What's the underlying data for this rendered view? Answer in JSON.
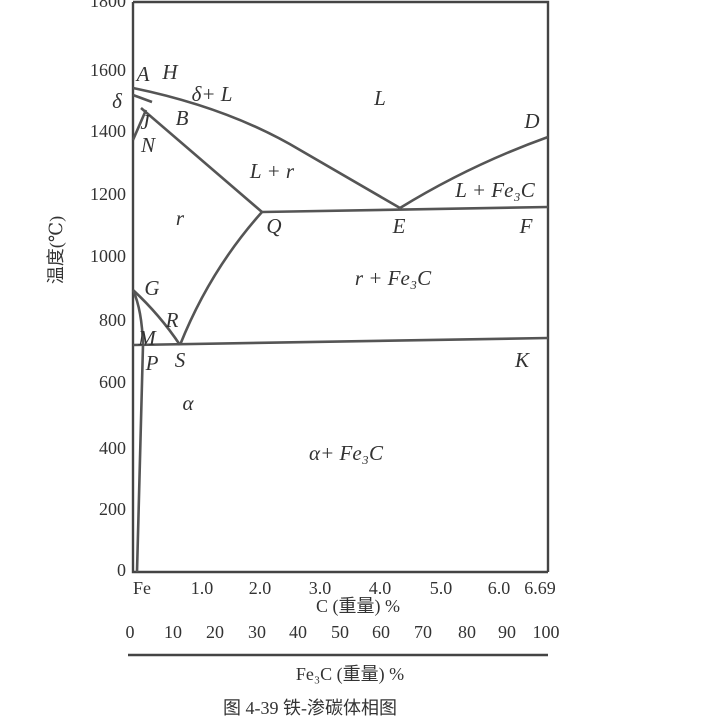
{
  "y_axis": {
    "title": "温度(℃)",
    "ticks": [
      "1800",
      "1600",
      "1400",
      "1200",
      "1000",
      "800",
      "600",
      "400",
      "200",
      "0"
    ]
  },
  "x_axis": {
    "title": "C (重量) %",
    "ticks": [
      "Fe",
      "1.0",
      "2.0",
      "3.0",
      "4.0",
      "5.0",
      "6.0",
      "6.69"
    ]
  },
  "x_axis_2": {
    "title": "Fe₃C (重量) %",
    "ticks": [
      "0",
      "10",
      "20",
      "30",
      "40",
      "50",
      "60",
      "70",
      "80",
      "90",
      "100"
    ]
  },
  "regions": [
    "L",
    "δ+ L",
    "L + r",
    "L + Fe₃C",
    "r",
    "r + Fe₃C",
    "α",
    "α+ Fe₃C",
    "δ"
  ],
  "points": [
    "A",
    "H",
    "B",
    "J",
    "N",
    "D",
    "Q",
    "E",
    "F",
    "G",
    "R",
    "M",
    "P",
    "S",
    "K"
  ],
  "caption": "图 4-39   铁-渗碳体相图"
}
